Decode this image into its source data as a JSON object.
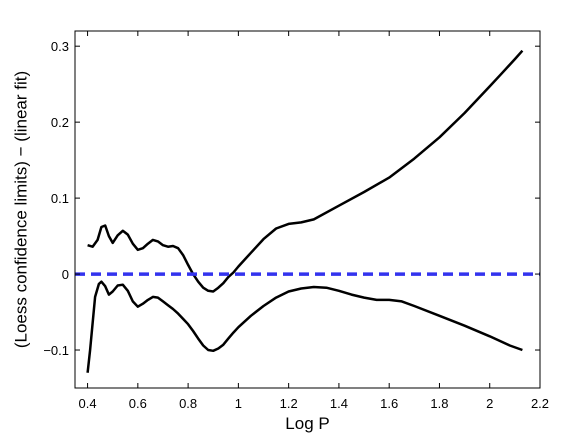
{
  "chart_data": {
    "type": "line",
    "title": "",
    "xlabel": "Log P",
    "ylabel": "(Loess confidence limits) − (linear fit)",
    "xlim": [
      0.35,
      2.2
    ],
    "ylim": [
      -0.15,
      0.32
    ],
    "x_ticks": [
      0.4,
      0.6,
      0.8,
      1,
      1.2,
      1.4,
      1.6,
      1.8,
      2,
      2.2
    ],
    "x_tick_labels": [
      "0.4",
      "0.6",
      "0.8",
      "1",
      "1.2",
      "1.4",
      "1.6",
      "1.8",
      "2",
      "2.2"
    ],
    "y_ticks": [
      -0.1,
      0,
      0.1,
      0.2,
      0.3
    ],
    "y_tick_labels": [
      "−0.1",
      "0",
      "0.1",
      "0.2",
      "0.3"
    ],
    "grid": false,
    "legend": "none",
    "series": [
      {
        "style": "solid",
        "color": "#000000",
        "points": [
          [
            0.4,
            0.038
          ],
          [
            0.42,
            0.036
          ],
          [
            0.44,
            0.045
          ],
          [
            0.455,
            0.062
          ],
          [
            0.47,
            0.064
          ],
          [
            0.485,
            0.05
          ],
          [
            0.5,
            0.041
          ],
          [
            0.52,
            0.051
          ],
          [
            0.54,
            0.057
          ],
          [
            0.56,
            0.052
          ],
          [
            0.58,
            0.04
          ],
          [
            0.6,
            0.032
          ],
          [
            0.62,
            0.034
          ],
          [
            0.64,
            0.04
          ],
          [
            0.66,
            0.045
          ],
          [
            0.68,
            0.043
          ],
          [
            0.7,
            0.038
          ],
          [
            0.72,
            0.036
          ],
          [
            0.74,
            0.037
          ],
          [
            0.76,
            0.034
          ],
          [
            0.78,
            0.025
          ],
          [
            0.8,
            0.012
          ],
          [
            0.82,
            0.0
          ],
          [
            0.84,
            -0.01
          ],
          [
            0.86,
            -0.018
          ],
          [
            0.88,
            -0.022
          ],
          [
            0.9,
            -0.023
          ],
          [
            0.92,
            -0.018
          ],
          [
            0.94,
            -0.012
          ],
          [
            0.96,
            -0.004
          ],
          [
            0.98,
            0.002
          ],
          [
            1.0,
            0.01
          ],
          [
            1.05,
            0.028
          ],
          [
            1.1,
            0.046
          ],
          [
            1.15,
            0.06
          ],
          [
            1.2,
            0.066
          ],
          [
            1.25,
            0.068
          ],
          [
            1.3,
            0.072
          ],
          [
            1.4,
            0.09
          ],
          [
            1.5,
            0.108
          ],
          [
            1.6,
            0.127
          ],
          [
            1.7,
            0.152
          ],
          [
            1.8,
            0.18
          ],
          [
            1.9,
            0.212
          ],
          [
            2.0,
            0.247
          ],
          [
            2.05,
            0.265
          ],
          [
            2.1,
            0.283
          ],
          [
            2.13,
            0.294
          ]
        ]
      },
      {
        "style": "solid",
        "color": "#000000",
        "points": [
          [
            0.4,
            -0.13
          ],
          [
            0.41,
            -0.1
          ],
          [
            0.42,
            -0.065
          ],
          [
            0.43,
            -0.03
          ],
          [
            0.445,
            -0.013
          ],
          [
            0.455,
            -0.01
          ],
          [
            0.47,
            -0.016
          ],
          [
            0.485,
            -0.027
          ],
          [
            0.5,
            -0.023
          ],
          [
            0.52,
            -0.015
          ],
          [
            0.54,
            -0.014
          ],
          [
            0.56,
            -0.022
          ],
          [
            0.58,
            -0.036
          ],
          [
            0.6,
            -0.043
          ],
          [
            0.62,
            -0.039
          ],
          [
            0.64,
            -0.034
          ],
          [
            0.66,
            -0.03
          ],
          [
            0.68,
            -0.031
          ],
          [
            0.7,
            -0.036
          ],
          [
            0.72,
            -0.041
          ],
          [
            0.74,
            -0.046
          ],
          [
            0.76,
            -0.052
          ],
          [
            0.78,
            -0.059
          ],
          [
            0.8,
            -0.066
          ],
          [
            0.82,
            -0.075
          ],
          [
            0.84,
            -0.085
          ],
          [
            0.86,
            -0.094
          ],
          [
            0.88,
            -0.1
          ],
          [
            0.9,
            -0.101
          ],
          [
            0.92,
            -0.098
          ],
          [
            0.94,
            -0.093
          ],
          [
            0.96,
            -0.085
          ],
          [
            0.98,
            -0.077
          ],
          [
            1.0,
            -0.07
          ],
          [
            1.05,
            -0.055
          ],
          [
            1.1,
            -0.042
          ],
          [
            1.15,
            -0.031
          ],
          [
            1.2,
            -0.023
          ],
          [
            1.25,
            -0.019
          ],
          [
            1.3,
            -0.017
          ],
          [
            1.35,
            -0.018
          ],
          [
            1.4,
            -0.022
          ],
          [
            1.45,
            -0.027
          ],
          [
            1.5,
            -0.031
          ],
          [
            1.55,
            -0.034
          ],
          [
            1.6,
            -0.034
          ],
          [
            1.65,
            -0.036
          ],
          [
            1.7,
            -0.042
          ],
          [
            1.8,
            -0.055
          ],
          [
            1.9,
            -0.068
          ],
          [
            2.0,
            -0.082
          ],
          [
            2.08,
            -0.094
          ],
          [
            2.13,
            -0.1
          ]
        ]
      },
      {
        "style": "dashed",
        "color": "#3333ee",
        "points": [
          [
            0.35,
            0
          ],
          [
            2.2,
            0
          ]
        ]
      }
    ]
  }
}
